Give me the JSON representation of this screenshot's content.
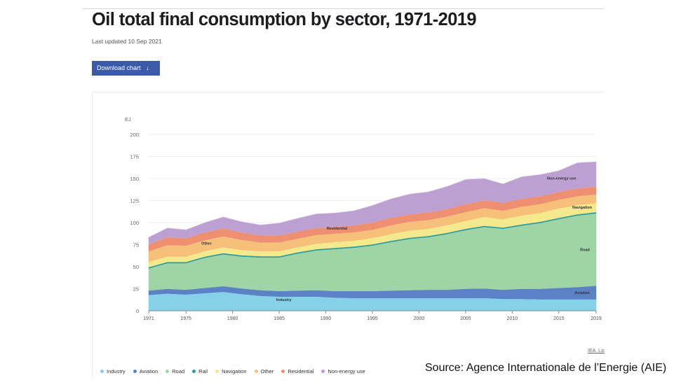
{
  "header": {
    "title": "Oil total final consumption by sector, 1971-2019",
    "updated": "Last updated 10 Sep 2021",
    "download_label": "Download chart",
    "download_arrow": "↓"
  },
  "credit": "IEA. Lic",
  "source": "Source: Agence Internationale de l’Energie (AIE)",
  "legend": [
    {
      "label": "Industry",
      "color": "#86d0ea"
    },
    {
      "label": "Aviation",
      "color": "#5b82c5"
    },
    {
      "label": "Road",
      "color": "#9ed4a6"
    },
    {
      "label": "Rail",
      "color": "#2f9d96"
    },
    {
      "label": "Navigation",
      "color": "#f4e98c"
    },
    {
      "label": "Other",
      "color": "#f6c07a"
    },
    {
      "label": "Residential",
      "color": "#ee8f72"
    },
    {
      "label": "Non-energy use",
      "color": "#bda0d2"
    }
  ],
  "chart_data": {
    "type": "area",
    "stacked": true,
    "title": "Oil total final consumption by sector, 1971-2019",
    "ylabel": "EJ",
    "xlabel": "",
    "ylim": [
      0,
      200
    ],
    "yticks": [
      0,
      25,
      50,
      75,
      100,
      125,
      150,
      175,
      200
    ],
    "xlim": [
      1971,
      2019
    ],
    "xticks": [
      1971,
      1975,
      1980,
      1985,
      1990,
      1995,
      2000,
      2005,
      2010,
      2015,
      2019
    ],
    "grid": true,
    "x": [
      1971,
      1973,
      1975,
      1977,
      1979,
      1981,
      1983,
      1985,
      1987,
      1989,
      1991,
      1993,
      1995,
      1997,
      1999,
      2001,
      2003,
      2005,
      2007,
      2009,
      2011,
      2013,
      2015,
      2017,
      2019
    ],
    "series": [
      {
        "name": "Industry",
        "color": "#86d0ea",
        "values": [
          18,
          19.5,
          18.5,
          20,
          21.5,
          19,
          17,
          16,
          16,
          16,
          15,
          14.5,
          14.5,
          14.5,
          14.5,
          14.5,
          14.5,
          14.5,
          14.5,
          13.5,
          13.5,
          13,
          13,
          13,
          13
        ]
      },
      {
        "name": "Aviation",
        "color": "#5b82c5",
        "values": [
          5,
          5.5,
          5.5,
          6,
          6.5,
          6.5,
          6.5,
          6.5,
          7,
          7.5,
          7.5,
          8,
          8,
          8.5,
          9,
          9.5,
          9.5,
          10.5,
          11,
          10.5,
          11.5,
          12,
          13,
          14,
          15.5
        ]
      },
      {
        "name": "Road",
        "color": "#9ed4a6",
        "values": [
          25,
          29,
          30,
          34,
          36,
          36,
          37,
          38,
          42,
          45,
          47.5,
          49,
          51.5,
          55,
          58,
          59.5,
          63,
          66.5,
          69.5,
          69,
          71.5,
          74.5,
          78,
          81,
          82
        ]
      },
      {
        "name": "Rail",
        "color": "#2f9d96",
        "values": [
          1.5,
          1.5,
          1.5,
          1.5,
          1.5,
          1.5,
          1.5,
          1.5,
          1.5,
          1.5,
          1.5,
          1.5,
          1.5,
          1.5,
          1.5,
          1.5,
          1.5,
          1.5,
          1.5,
          1.5,
          1.5,
          1.5,
          1.5,
          1.5,
          1.5
        ]
      },
      {
        "name": "Navigation",
        "color": "#f4e98c",
        "values": [
          6,
          6,
          6,
          6,
          6.5,
          6,
          5.5,
          5.5,
          5.5,
          6,
          6.5,
          6.5,
          7,
          7.5,
          8,
          8,
          8.5,
          9,
          10,
          9.5,
          10,
          10,
          10.5,
          10.5,
          10
        ]
      },
      {
        "name": "Other",
        "color": "#f6c07a",
        "values": [
          12,
          13,
          12.5,
          12.5,
          12.5,
          11.5,
          10,
          10,
          10,
          10,
          9.5,
          9.5,
          9.5,
          10,
          10,
          10,
          10,
          10,
          10,
          9.5,
          10,
          10,
          10,
          10,
          10
        ]
      },
      {
        "name": "Residential",
        "color": "#ee8f72",
        "values": [
          8,
          9,
          8.5,
          9,
          9,
          8.5,
          8,
          8,
          8,
          8,
          8,
          8,
          8.5,
          8.5,
          8.5,
          8.5,
          8.5,
          9,
          9,
          9,
          9,
          9,
          9,
          9,
          9
        ]
      },
      {
        "name": "Non-energy use",
        "color": "#bda0d2",
        "values": [
          8,
          10.5,
          9.5,
          11,
          13,
          12,
          12,
          14,
          15,
          16,
          15.5,
          16.5,
          19,
          21.5,
          23,
          23.5,
          25.5,
          28,
          24.5,
          21.5,
          25,
          24.5,
          24,
          29,
          28
        ]
      }
    ],
    "annotations": [
      {
        "text": "Industry",
        "x": 1985.5,
        "y": 11,
        "series": "Industry"
      },
      {
        "text": "Aviation",
        "x": 2017.5,
        "y": 19,
        "series": "Aviation"
      },
      {
        "text": "Road",
        "x": 2017.8,
        "y": 68,
        "series": "Road"
      },
      {
        "text": "Navigation",
        "x": 2017.5,
        "y": 116,
        "series": "Navigation"
      },
      {
        "text": "Other",
        "x": 1977.2,
        "y": 75,
        "series": "Other"
      },
      {
        "text": "Residential",
        "x": 1991.2,
        "y": 92,
        "series": "Residential"
      },
      {
        "text": "Non-energy use",
        "x": 2015.3,
        "y": 149,
        "series": "Non-energy use"
      }
    ]
  }
}
